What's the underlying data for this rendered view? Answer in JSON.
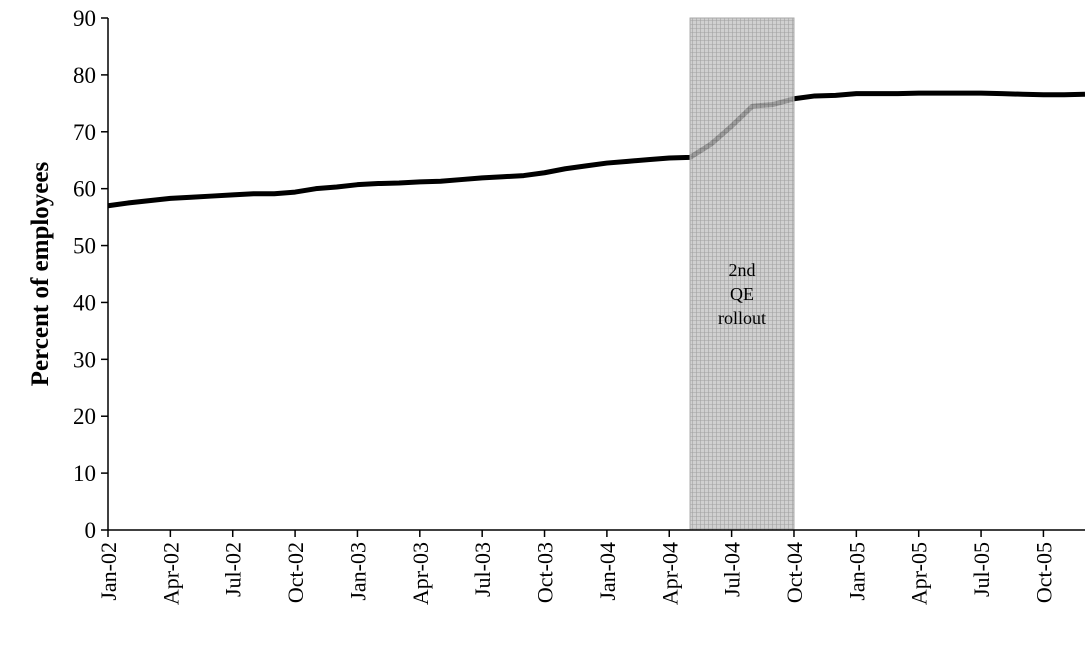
{
  "chart_data": {
    "type": "line",
    "y_label": "Percent of employees",
    "categories": [
      "Jan-02",
      null,
      null,
      "Apr-02",
      null,
      null,
      "Jul-02",
      null,
      null,
      "Oct-02",
      null,
      null,
      "Jan-03",
      null,
      null,
      "Apr-03",
      null,
      null,
      "Jul-03",
      null,
      null,
      "Oct-03",
      null,
      null,
      "Jan-04",
      null,
      null,
      "Apr-04",
      null,
      null,
      "Jul-04",
      null,
      null,
      "Oct-04",
      null,
      null,
      "Jan-05",
      null,
      null,
      "Apr-05",
      null,
      null,
      "Jul-05",
      null,
      null,
      "Oct-05",
      null,
      null
    ],
    "values": [
      57.0,
      57.5,
      57.9,
      58.3,
      58.5,
      58.7,
      58.9,
      59.1,
      59.1,
      59.4,
      60.0,
      60.3,
      60.7,
      60.9,
      61.0,
      61.2,
      61.3,
      61.6,
      61.9,
      62.1,
      62.3,
      62.8,
      63.5,
      64.0,
      64.5,
      64.8,
      65.1,
      65.4,
      65.5,
      67.8,
      71.0,
      74.5,
      74.8,
      75.8,
      76.3,
      76.4,
      76.7,
      76.7,
      76.7,
      76.8,
      76.8,
      76.8,
      76.8,
      76.7,
      76.6,
      76.5,
      76.5,
      76.6
    ],
    "color": "#000000",
    "ylim": [
      0,
      90
    ],
    "yticks": [
      0,
      10,
      20,
      30,
      40,
      50,
      60,
      70,
      80,
      90
    ],
    "shaded_x": [
      28,
      33
    ],
    "shade_label": [
      "2nd",
      "QE",
      "rollout"
    ],
    "shade_color": "#a8a8a8"
  }
}
